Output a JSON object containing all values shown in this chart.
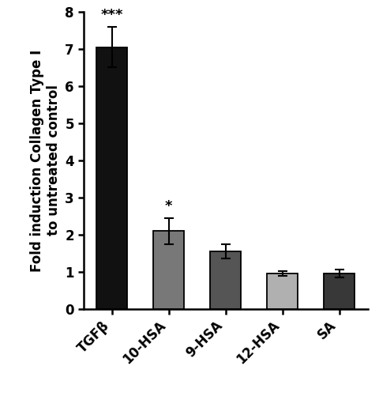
{
  "categories": [
    "TGFβ",
    "10-HSA",
    "9-HSA",
    "12-HSA",
    "SA"
  ],
  "values": [
    7.05,
    2.1,
    1.55,
    0.95,
    0.95
  ],
  "errors": [
    0.55,
    0.35,
    0.2,
    0.07,
    0.1
  ],
  "bar_colors": [
    "#111111",
    "#787878",
    "#555555",
    "#b0b0b0",
    "#383838"
  ],
  "bar_edgecolors": [
    "#000000",
    "#000000",
    "#000000",
    "#000000",
    "#000000"
  ],
  "ylabel": "Fold induction Collagen Type I\nto untreated control",
  "ylim": [
    0,
    8
  ],
  "yticks": [
    0,
    1,
    2,
    3,
    4,
    5,
    6,
    7,
    8
  ],
  "significance": [
    "***",
    "*",
    "",
    "",
    ""
  ],
  "sig_fontsize": 13,
  "bar_width": 0.55,
  "capsize": 4,
  "ylabel_fontsize": 12,
  "tick_fontsize": 12,
  "background_color": "#ffffff"
}
